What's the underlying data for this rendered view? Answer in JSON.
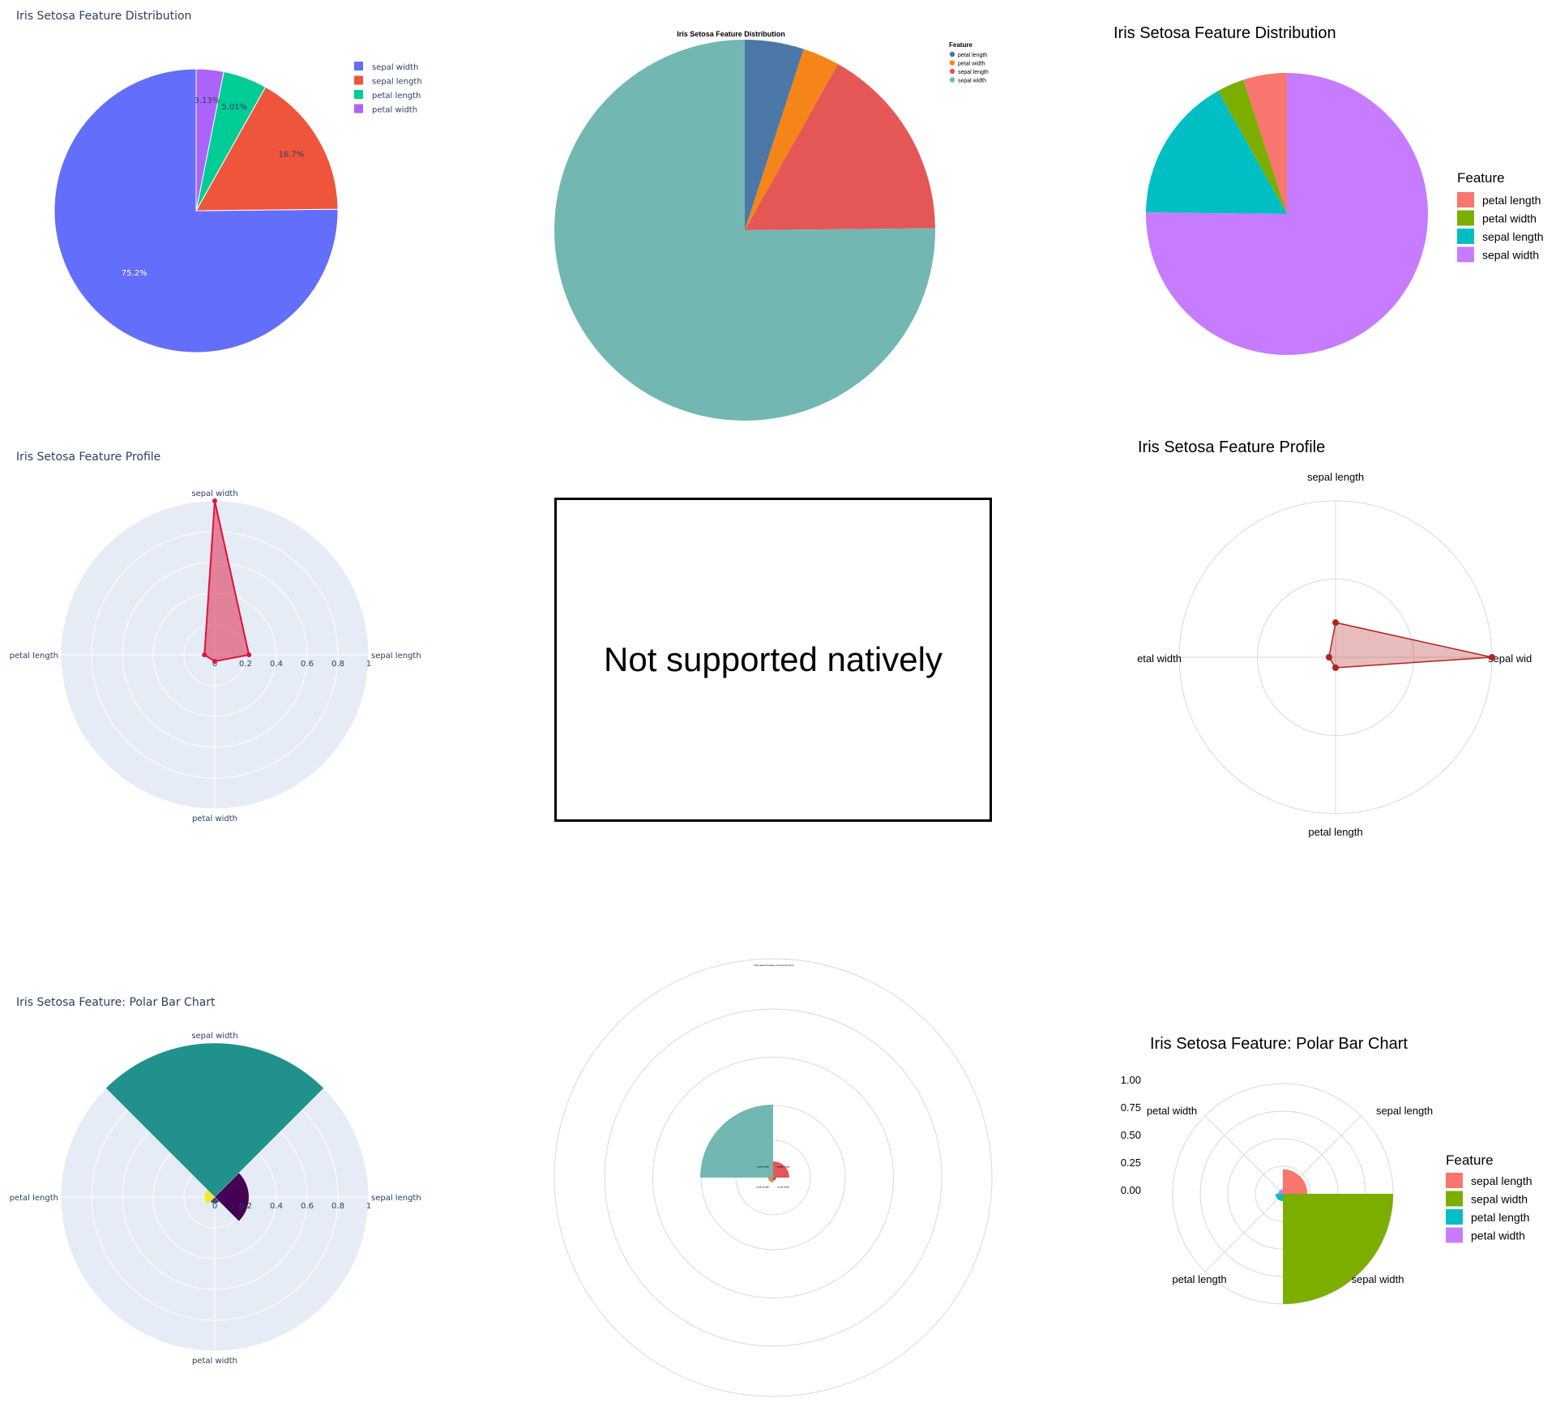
{
  "panels": {
    "p11": {
      "title": "Iris Setosa Feature Distribution"
    },
    "p12": {
      "title": "Iris Setosa Feature Distribution",
      "legend_title": "Feature"
    },
    "p13": {
      "title": "Iris Setosa Feature Distribution",
      "legend_title": "Feature"
    },
    "p21": {
      "title": "Iris Setosa Feature Profile"
    },
    "p22": {
      "message": "Not supported natively"
    },
    "p23": {
      "title": "Iris Setosa Feature Profile"
    },
    "p31": {
      "title": "Iris Setosa Feature: Polar Bar Chart"
    },
    "p32": {
      "title": "Normalized Feature Importance (Iris)"
    },
    "p33": {
      "title": "Iris Setosa Feature: Polar Bar Chart",
      "legend_title": "Feature"
    }
  },
  "chart_data": [
    {
      "type": "pie",
      "title": "Iris Setosa Feature Distribution",
      "labels": [
        "sepal width",
        "sepal length",
        "petal length",
        "petal width"
      ],
      "values": [
        75.2,
        16.7,
        5.01,
        3.13
      ],
      "text_labels": [
        "75.2%",
        "16.7%",
        "5.01%",
        "3.13%"
      ],
      "colors": [
        "#636efa",
        "#ef553b",
        "#00cc96",
        "#ab63fa"
      ],
      "legend": "top-right"
    },
    {
      "type": "pie",
      "title": "Iris Setosa Feature Distribution",
      "legend_title": "Feature",
      "labels": [
        "petal length",
        "petal width",
        "sepal length",
        "sepal width"
      ],
      "values": [
        5.01,
        3.13,
        16.7,
        75.2
      ],
      "colors": [
        "#4c78a8",
        "#f58518",
        "#e45756",
        "#72b7b2"
      ],
      "legend": "top-right"
    },
    {
      "type": "pie",
      "title": "Iris Setosa Feature Distribution",
      "legend_title": "Feature",
      "labels": [
        "petal length",
        "petal width",
        "sepal length",
        "sepal width"
      ],
      "values": [
        5.01,
        3.13,
        16.7,
        75.2
      ],
      "colors": [
        "#f8766d",
        "#7cae00",
        "#00bfc4",
        "#c77cff"
      ],
      "legend": "right"
    },
    {
      "type": "radar",
      "title": "Iris Setosa Feature Profile",
      "categories": [
        "sepal length",
        "sepal width",
        "petal length",
        "petal width"
      ],
      "values": [
        0.222,
        1.0,
        0.067,
        0.042
      ],
      "radial_ticks": [
        "0",
        "0.2",
        "0.4",
        "0.6",
        "0.8",
        "1"
      ],
      "color": "#dc143c"
    },
    {
      "type": "radar",
      "title": "Iris Setosa Feature Profile",
      "categories": [
        "sepal wid",
        "sepal length",
        "etal width",
        "petal length"
      ],
      "values": [
        1.0,
        0.222,
        0.042,
        0.067
      ],
      "color": "#b22222"
    },
    {
      "type": "polar-bar",
      "title": "Iris Setosa Feature: Polar Bar Chart",
      "categories": [
        "sepal length",
        "sepal width",
        "petal length",
        "petal width"
      ],
      "values": [
        0.222,
        1.0,
        0.067,
        0.042
      ],
      "colors": [
        "#440154",
        "#21918c",
        "#fde725",
        "#3b528b"
      ],
      "radial_ticks": [
        "0",
        "0.2",
        "0.4",
        "0.6",
        "0.8",
        "1"
      ]
    },
    {
      "type": "polar-bar",
      "title": "Normalized Feature Importance (Iris)",
      "categories": [
        "sepal length",
        "petal width",
        "petal length",
        "sepal width"
      ],
      "values": [
        0.222,
        0.042,
        0.067,
        1.0
      ],
      "colors": [
        "#e45756",
        "#4c78a8",
        "#f58518",
        "#72b7b2"
      ]
    },
    {
      "type": "polar-bar",
      "title": "Iris Setosa Feature: Polar Bar Chart",
      "legend_title": "Feature",
      "categories": [
        "sepal length",
        "sepal width",
        "petal length",
        "petal width"
      ],
      "values": [
        0.222,
        1.0,
        0.067,
        0.042
      ],
      "colors": [
        "#f8766d",
        "#7cae00",
        "#00bfc4",
        "#c77cff"
      ],
      "y_ticks": [
        "1.00",
        "0.75",
        "0.50",
        "0.25",
        "0.00"
      ]
    }
  ]
}
